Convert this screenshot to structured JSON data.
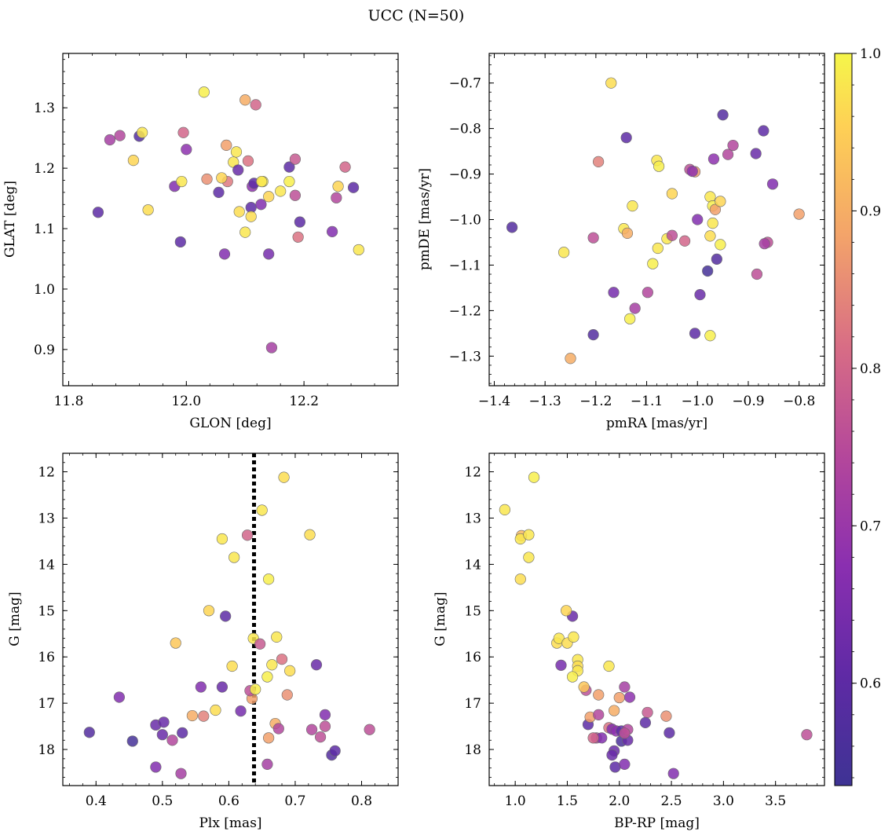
{
  "figure": {
    "title": "UCC (N=50)"
  },
  "colors": {
    "colormap": "plasma",
    "marker_edge": "#6a6a6a",
    "median_line": "#000000"
  },
  "colorbar": {
    "ticks": [
      "0.6",
      "0.7",
      "0.8",
      "0.9",
      "1.0"
    ],
    "tick_values": [
      0.6,
      0.7,
      0.8,
      0.9,
      1.0
    ],
    "range": [
      0.535,
      1.0
    ]
  },
  "chart_data": [
    {
      "type": "scatter",
      "panel": "top-left",
      "xlabel": "GLON [deg]",
      "ylabel": "GLAT [deg]",
      "xlim": [
        11.79,
        12.36
      ],
      "ylim": [
        0.84,
        1.39
      ],
      "y_inverted": false,
      "xticks": [
        11.8,
        12.0,
        12.2
      ],
      "xtick_labels": [
        "11.8",
        "12.0",
        "12.2"
      ],
      "yticks": [
        0.9,
        1.0,
        1.1,
        1.2,
        1.3
      ],
      "ytick_labels": [
        "0.9",
        "1.0",
        "1.1",
        "1.2",
        "1.3"
      ],
      "color_values": [
        0.6,
        0.72,
        0.74,
        0.96,
        0.58,
        0.98,
        0.97,
        0.6,
        0.66,
        0.98,
        0.68,
        0.8,
        0.6,
        0.99,
        0.86,
        0.83,
        0.88,
        0.96,
        0.98,
        0.62,
        0.66,
        0.98,
        0.97,
        0.98,
        0.6,
        0.82,
        0.68,
        0.6,
        0.9,
        0.97,
        0.99,
        0.8,
        0.66,
        0.96,
        0.98,
        0.98,
        0.99,
        0.64,
        0.72,
        0.76,
        0.6,
        0.82,
        0.78,
        0.6,
        0.96,
        0.66,
        0.74,
        0.8,
        0.6,
        0.98
      ],
      "points": [
        [
          11.85,
          1.127
        ],
        [
          11.87,
          1.247
        ],
        [
          11.887,
          1.254
        ],
        [
          11.91,
          1.213
        ],
        [
          11.92,
          1.253
        ],
        [
          11.925,
          1.259
        ],
        [
          11.935,
          1.131
        ],
        [
          11.99,
          1.078
        ],
        [
          11.98,
          1.17
        ],
        [
          11.992,
          1.178
        ],
        [
          12.0,
          1.231
        ],
        [
          11.995,
          1.259
        ],
        [
          12.055,
          1.16
        ],
        [
          12.03,
          1.326
        ],
        [
          12.035,
          1.182
        ],
        [
          12.07,
          1.178
        ],
        [
          12.068,
          1.238
        ],
        [
          12.06,
          1.184
        ],
        [
          12.08,
          1.21
        ],
        [
          12.088,
          1.197
        ],
        [
          12.065,
          1.058
        ],
        [
          12.085,
          1.227
        ],
        [
          12.09,
          1.128
        ],
        [
          12.1,
          1.094
        ],
        [
          12.11,
          1.135
        ],
        [
          12.105,
          1.212
        ],
        [
          12.112,
          1.17
        ],
        [
          12.115,
          1.175
        ],
        [
          12.1,
          1.313
        ],
        [
          12.11,
          1.12
        ],
        [
          12.13,
          1.178
        ],
        [
          12.118,
          1.305
        ],
        [
          12.127,
          1.14
        ],
        [
          12.14,
          1.153
        ],
        [
          12.128,
          1.178
        ],
        [
          12.16,
          1.162
        ],
        [
          12.175,
          1.178
        ],
        [
          12.14,
          1.058
        ],
        [
          12.145,
          0.903
        ],
        [
          12.185,
          1.155
        ],
        [
          12.175,
          1.202
        ],
        [
          12.19,
          1.086
        ],
        [
          12.185,
          1.215
        ],
        [
          12.193,
          1.111
        ],
        [
          12.258,
          1.17
        ],
        [
          12.248,
          1.095
        ],
        [
          12.255,
          1.151
        ],
        [
          12.27,
          1.202
        ],
        [
          12.284,
          1.168
        ],
        [
          12.293,
          1.065
        ]
      ]
    },
    {
      "type": "scatter",
      "panel": "top-right",
      "xlabel": "pmRA [mas/yr]",
      "ylabel": "pmDE [mas/yr]",
      "xlim": [
        -1.41,
        -0.75
      ],
      "ylim": [
        -1.365,
        -0.635
      ],
      "y_inverted": false,
      "xticks": [
        -1.4,
        -1.3,
        -1.2,
        -1.1,
        -1.0,
        -0.9,
        -0.8
      ],
      "xtick_labels": [
        "−1.4",
        "−1.3",
        "−1.2",
        "−1.1",
        "−1.0",
        "−0.9",
        "−0.8"
      ],
      "yticks": [
        -1.3,
        -1.2,
        -1.1,
        -1.0,
        -0.9,
        -0.8,
        -0.7
      ],
      "ytick_labels": [
        "−1.3",
        "−1.2",
        "−1.1",
        "−1.0",
        "−0.9",
        "−0.8",
        "−0.7"
      ],
      "color_values": [
        0.58,
        0.98,
        0.9,
        0.76,
        0.58,
        0.84,
        0.97,
        0.64,
        0.6,
        0.98,
        0.99,
        0.98,
        0.72,
        0.9,
        0.98,
        0.98,
        0.74,
        0.99,
        0.96,
        0.98,
        0.99,
        0.76,
        0.8,
        0.76,
        0.87,
        0.68,
        0.66,
        0.6,
        0.62,
        0.98,
        0.99,
        0.88,
        0.97,
        0.98,
        0.96,
        0.55,
        0.99,
        0.58,
        0.68,
        0.74,
        0.99,
        0.58,
        0.74,
        0.62,
        0.76,
        0.6,
        0.66,
        0.76,
        0.72,
        0.88
      ],
      "points": [
        [
          -1.365,
          -1.017
        ],
        [
          -1.263,
          -1.072
        ],
        [
          -1.25,
          -1.305
        ],
        [
          -1.205,
          -1.04
        ],
        [
          -1.205,
          -1.253
        ],
        [
          -1.195,
          -0.873
        ],
        [
          -1.17,
          -0.7
        ],
        [
          -1.165,
          -1.16
        ],
        [
          -1.14,
          -0.82
        ],
        [
          -1.145,
          -1.02
        ],
        [
          -1.133,
          -1.218
        ],
        [
          -1.128,
          -0.97
        ],
        [
          -1.123,
          -1.195
        ],
        [
          -1.138,
          -1.03
        ],
        [
          -1.08,
          -0.87
        ],
        [
          -1.078,
          -1.063
        ],
        [
          -1.098,
          -1.16
        ],
        [
          -1.088,
          -1.097
        ],
        [
          -1.05,
          -0.943
        ],
        [
          -1.06,
          -1.042
        ],
        [
          -1.076,
          -0.883
        ],
        [
          -1.05,
          -1.035
        ],
        [
          -1.025,
          -1.047
        ],
        [
          -1.015,
          -0.89
        ],
        [
          -1.005,
          -0.895
        ],
        [
          -1.01,
          -0.894
        ],
        [
          -1.0,
          -1.0
        ],
        [
          -1.005,
          -1.25
        ],
        [
          -0.995,
          -1.165
        ],
        [
          -0.975,
          -0.95
        ],
        [
          -0.97,
          -0.97
        ],
        [
          -0.965,
          -0.978
        ],
        [
          -0.975,
          -1.036
        ],
        [
          -0.97,
          -1.008
        ],
        [
          -0.955,
          -0.96
        ],
        [
          -0.98,
          -1.113
        ],
        [
          -0.975,
          -1.255
        ],
        [
          -0.95,
          -0.77
        ],
        [
          -0.968,
          -0.867
        ],
        [
          -0.94,
          -0.857
        ],
        [
          -0.955,
          -1.055
        ],
        [
          -0.962,
          -1.087
        ],
        [
          -0.93,
          -0.837
        ],
        [
          -0.885,
          -0.855
        ],
        [
          -0.883,
          -1.12
        ],
        [
          -0.87,
          -0.805
        ],
        [
          -0.852,
          -0.922
        ],
        [
          -0.862,
          -1.05
        ],
        [
          -0.868,
          -1.053
        ],
        [
          -0.8,
          -0.988
        ]
      ]
    },
    {
      "type": "scatter",
      "panel": "bottom-left",
      "xlabel": "Plx [mas]",
      "ylabel": "G [mag]",
      "xlim": [
        0.35,
        0.855
      ],
      "ylim": [
        11.6,
        18.78
      ],
      "y_inverted": true,
      "xticks": [
        0.4,
        0.5,
        0.6,
        0.7,
        0.8
      ],
      "xtick_labels": [
        "0.4",
        "0.5",
        "0.6",
        "0.7",
        "0.8"
      ],
      "yticks": [
        12,
        13,
        14,
        15,
        16,
        17,
        18
      ],
      "ytick_labels": [
        "12",
        "13",
        "14",
        "15",
        "16",
        "17",
        "18"
      ],
      "median_plx": 0.638,
      "color_values": [
        0.58,
        0.66,
        0.55,
        0.62,
        0.66,
        0.62,
        0.74,
        0.62,
        0.6,
        0.72,
        0.66,
        0.94,
        0.9,
        0.84,
        0.6,
        0.96,
        0.97,
        0.62,
        0.97,
        0.98,
        0.98,
        0.64,
        0.8,
        0.88,
        0.76,
        0.98,
        0.99,
        0.78,
        0.98,
        0.88,
        0.99,
        0.98,
        0.9,
        0.74,
        0.99,
        0.98,
        0.82,
        0.97,
        0.86,
        0.74,
        0.97,
        0.62,
        0.97,
        0.76,
        0.76,
        0.66,
        0.58,
        0.76,
        0.6,
        0.72
      ],
      "points": [
        [
          0.39,
          17.63
        ],
        [
          0.435,
          16.87
        ],
        [
          0.455,
          17.82
        ],
        [
          0.49,
          17.47
        ],
        [
          0.49,
          18.38
        ],
        [
          0.5,
          17.68
        ],
        [
          0.515,
          17.8
        ],
        [
          0.502,
          17.41
        ],
        [
          0.53,
          17.64
        ],
        [
          0.528,
          18.52
        ],
        [
          0.558,
          16.65
        ],
        [
          0.52,
          15.7
        ],
        [
          0.545,
          17.27
        ],
        [
          0.562,
          17.28
        ],
        [
          0.595,
          15.12
        ],
        [
          0.57,
          15.0
        ],
        [
          0.58,
          17.15
        ],
        [
          0.59,
          16.65
        ],
        [
          0.605,
          16.2
        ],
        [
          0.608,
          13.85
        ],
        [
          0.59,
          13.45
        ],
        [
          0.618,
          17.17
        ],
        [
          0.628,
          13.37
        ],
        [
          0.635,
          16.9
        ],
        [
          0.632,
          16.73
        ],
        [
          0.637,
          15.6
        ],
        [
          0.64,
          16.7
        ],
        [
          0.647,
          15.72
        ],
        [
          0.65,
          12.83
        ],
        [
          0.66,
          17.75
        ],
        [
          0.66,
          14.32
        ],
        [
          0.665,
          16.17
        ],
        [
          0.67,
          17.44
        ],
        [
          0.675,
          17.55
        ],
        [
          0.658,
          16.43
        ],
        [
          0.672,
          15.57
        ],
        [
          0.68,
          16.05
        ],
        [
          0.683,
          12.12
        ],
        [
          0.688,
          16.82
        ],
        [
          0.725,
          17.57
        ],
        [
          0.722,
          13.36
        ],
        [
          0.732,
          16.17
        ],
        [
          0.692,
          16.3
        ],
        [
          0.738,
          17.73
        ],
        [
          0.745,
          17.5
        ],
        [
          0.745,
          17.25
        ],
        [
          0.755,
          18.12
        ],
        [
          0.812,
          17.57
        ],
        [
          0.76,
          18.03
        ],
        [
          0.658,
          18.32
        ]
      ]
    },
    {
      "type": "scatter",
      "panel": "bottom-right",
      "xlabel": "BP-RP [mag]",
      "ylabel": "G [mag]",
      "xlim": [
        0.75,
        3.97
      ],
      "ylim": [
        11.6,
        18.78
      ],
      "y_inverted": true,
      "xticks": [
        1.0,
        1.5,
        2.0,
        2.5,
        3.0,
        3.5
      ],
      "xtick_labels": [
        "1.0",
        "1.5",
        "2.0",
        "2.5",
        "3.0",
        "3.5"
      ],
      "yticks": [
        12,
        13,
        14,
        15,
        16,
        17,
        18
      ],
      "ytick_labels": [
        "12",
        "13",
        "14",
        "15",
        "16",
        "17",
        "18"
      ],
      "color_values": [
        0.98,
        0.99,
        0.92,
        0.98,
        0.98,
        0.98,
        0.97,
        0.62,
        0.96,
        0.97,
        0.98,
        0.97,
        0.98,
        0.64,
        0.98,
        0.97,
        0.98,
        0.99,
        0.76,
        0.6,
        0.88,
        0.94,
        0.88,
        0.74,
        0.9,
        0.82,
        0.74,
        0.66,
        0.98,
        0.66,
        0.62,
        0.62,
        0.68,
        0.56,
        0.88,
        0.72,
        0.6,
        0.6,
        0.74,
        0.62,
        0.76,
        0.68,
        0.66,
        0.78,
        0.6,
        0.86,
        0.8,
        0.6,
        0.66,
        0.76
      ],
      "points": [
        [
          0.9,
          12.82
        ],
        [
          1.18,
          12.12
        ],
        [
          1.06,
          13.38
        ],
        [
          1.05,
          13.45
        ],
        [
          1.13,
          13.36
        ],
        [
          1.13,
          13.85
        ],
        [
          1.05,
          14.32
        ],
        [
          1.55,
          15.12
        ],
        [
          1.49,
          15.0
        ],
        [
          1.4,
          15.7
        ],
        [
          1.42,
          15.6
        ],
        [
          1.5,
          15.7
        ],
        [
          1.56,
          15.57
        ],
        [
          1.44,
          16.18
        ],
        [
          1.6,
          16.06
        ],
        [
          1.6,
          16.2
        ],
        [
          1.6,
          16.3
        ],
        [
          1.55,
          16.43
        ],
        [
          1.68,
          16.72
        ],
        [
          1.7,
          17.46
        ],
        [
          1.72,
          17.3
        ],
        [
          1.66,
          16.65
        ],
        [
          1.8,
          16.82
        ],
        [
          1.8,
          17.25
        ],
        [
          1.95,
          17.16
        ],
        [
          1.9,
          17.53
        ],
        [
          1.78,
          17.75
        ],
        [
          1.83,
          17.75
        ],
        [
          1.9,
          16.2
        ],
        [
          1.93,
          17.56
        ],
        [
          1.95,
          18.03
        ],
        [
          1.93,
          18.12
        ],
        [
          1.97,
          17.6
        ],
        [
          2.02,
          17.82
        ],
        [
          2.0,
          16.88
        ],
        [
          2.05,
          16.65
        ],
        [
          2.02,
          17.6
        ],
        [
          1.96,
          18.38
        ],
        [
          2.08,
          17.57
        ],
        [
          2.08,
          17.8
        ],
        [
          2.05,
          17.65
        ],
        [
          2.1,
          16.87
        ],
        [
          2.05,
          18.32
        ],
        [
          2.27,
          17.2
        ],
        [
          2.25,
          17.42
        ],
        [
          2.45,
          17.28
        ],
        [
          1.75,
          17.75
        ],
        [
          2.48,
          17.64
        ],
        [
          2.52,
          18.52
        ],
        [
          3.8,
          17.68
        ]
      ]
    }
  ]
}
